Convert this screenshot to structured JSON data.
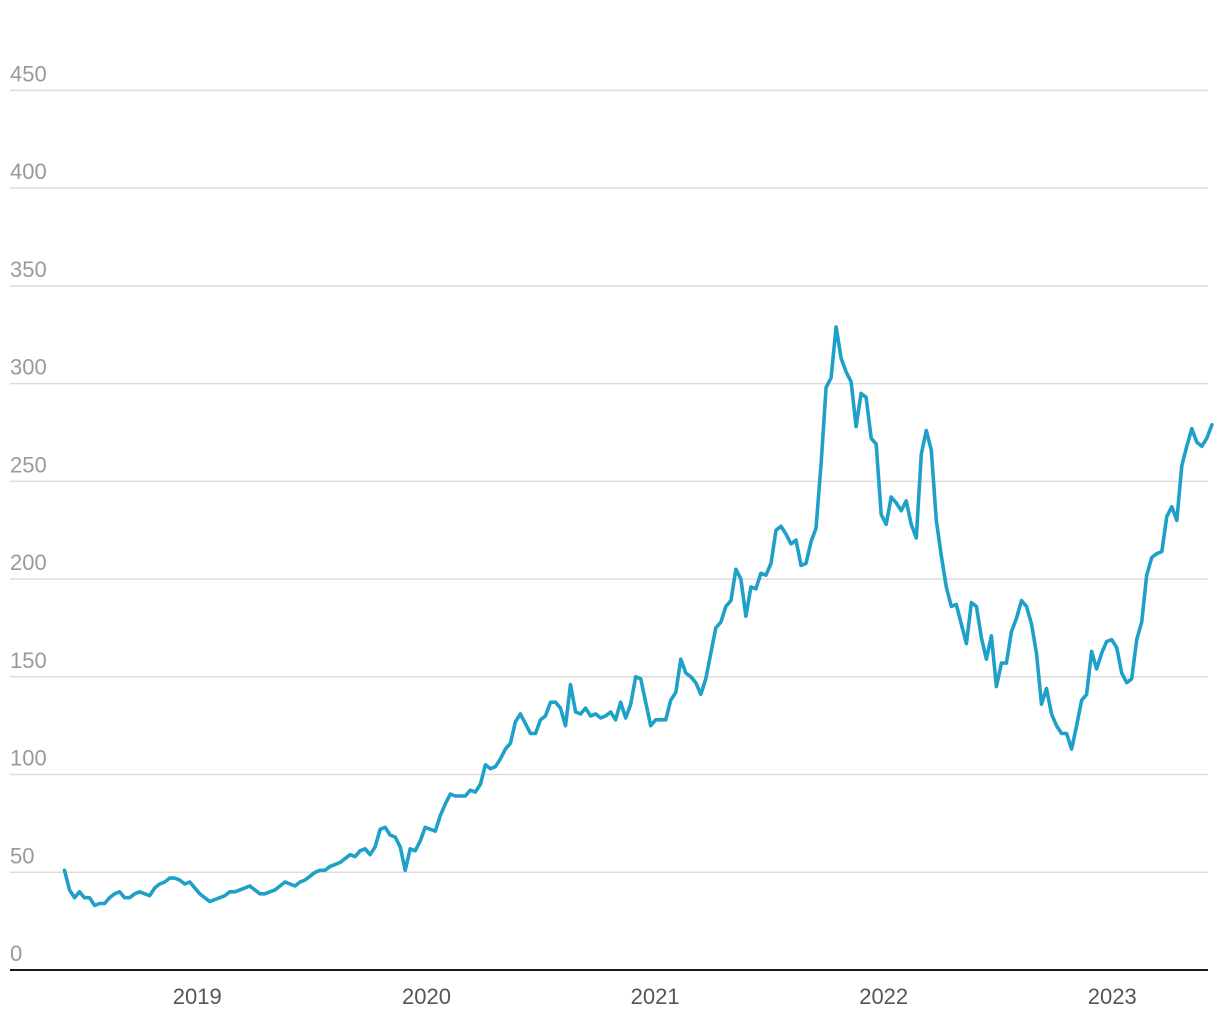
{
  "chart_data": {
    "type": "line",
    "title": "",
    "xlabel": "",
    "ylabel": "",
    "ylim": [
      0,
      485
    ],
    "xlim": [
      "2018-08-20",
      "2023-12-20"
    ],
    "grid": "horizontal",
    "legend": "none",
    "color": "#1fa0c8",
    "yticks": [
      0,
      50,
      100,
      150,
      200,
      250,
      300,
      350,
      400,
      450
    ],
    "xticks": [
      {
        "label": "2019",
        "date": "2019-07-01"
      },
      {
        "label": "2020",
        "date": "2020-07-01"
      },
      {
        "label": "2021",
        "date": "2021-07-01"
      },
      {
        "label": "2022",
        "date": "2022-07-01"
      },
      {
        "label": "2023",
        "date": "2023-07-01"
      }
    ],
    "series": [
      {
        "name": "",
        "points": [
          [
            "2018-12-01",
            51
          ],
          [
            "2018-12-09",
            41
          ],
          [
            "2018-12-17",
            37
          ],
          [
            "2018-12-25",
            40
          ],
          [
            "2019-01-02",
            37
          ],
          [
            "2019-01-10",
            37
          ],
          [
            "2019-01-18",
            33
          ],
          [
            "2019-01-26",
            34
          ],
          [
            "2019-02-03",
            34
          ],
          [
            "2019-02-11",
            37
          ],
          [
            "2019-02-19",
            39
          ],
          [
            "2019-02-27",
            40
          ],
          [
            "2019-03-07",
            37
          ],
          [
            "2019-03-15",
            37
          ],
          [
            "2019-03-23",
            39
          ],
          [
            "2019-03-31",
            40
          ],
          [
            "2019-04-08",
            39
          ],
          [
            "2019-04-16",
            38
          ],
          [
            "2019-04-24",
            42
          ],
          [
            "2019-05-02",
            44
          ],
          [
            "2019-05-10",
            45
          ],
          [
            "2019-05-18",
            47
          ],
          [
            "2019-05-26",
            47
          ],
          [
            "2019-06-03",
            46
          ],
          [
            "2019-06-11",
            44
          ],
          [
            "2019-06-19",
            45
          ],
          [
            "2019-06-27",
            42
          ],
          [
            "2019-07-05",
            39
          ],
          [
            "2019-07-13",
            37
          ],
          [
            "2019-07-21",
            35
          ],
          [
            "2019-07-29",
            36
          ],
          [
            "2019-08-06",
            37
          ],
          [
            "2019-08-14",
            38
          ],
          [
            "2019-08-22",
            40
          ],
          [
            "2019-08-30",
            40
          ],
          [
            "2019-09-07",
            41
          ],
          [
            "2019-09-15",
            42
          ],
          [
            "2019-09-23",
            43
          ],
          [
            "2019-10-01",
            41
          ],
          [
            "2019-10-09",
            39
          ],
          [
            "2019-10-17",
            39
          ],
          [
            "2019-10-25",
            40
          ],
          [
            "2019-11-02",
            41
          ],
          [
            "2019-11-10",
            43
          ],
          [
            "2019-11-18",
            45
          ],
          [
            "2019-11-26",
            44
          ],
          [
            "2019-12-04",
            43
          ],
          [
            "2019-12-12",
            45
          ],
          [
            "2019-12-20",
            46
          ],
          [
            "2019-12-28",
            48
          ],
          [
            "2020-01-05",
            50
          ],
          [
            "2020-01-13",
            51
          ],
          [
            "2020-01-21",
            51
          ],
          [
            "2020-01-29",
            53
          ],
          [
            "2020-02-06",
            54
          ],
          [
            "2020-02-14",
            55
          ],
          [
            "2020-02-22",
            57
          ],
          [
            "2020-03-01",
            59
          ],
          [
            "2020-03-09",
            58
          ],
          [
            "2020-03-17",
            61
          ],
          [
            "2020-03-25",
            62
          ],
          [
            "2020-04-02",
            59
          ],
          [
            "2020-04-10",
            63
          ],
          [
            "2020-04-18",
            72
          ],
          [
            "2020-04-26",
            73
          ],
          [
            "2020-05-04",
            69
          ],
          [
            "2020-05-12",
            68
          ],
          [
            "2020-05-20",
            63
          ],
          [
            "2020-05-28",
            51
          ],
          [
            "2020-06-05",
            62
          ],
          [
            "2020-06-13",
            61
          ],
          [
            "2020-06-21",
            66
          ],
          [
            "2020-06-29",
            73
          ],
          [
            "2020-07-07",
            72
          ],
          [
            "2020-07-15",
            71
          ],
          [
            "2020-07-23",
            79
          ],
          [
            "2020-07-31",
            85
          ],
          [
            "2020-08-08",
            90
          ],
          [
            "2020-08-16",
            89
          ],
          [
            "2020-08-24",
            89
          ],
          [
            "2020-09-01",
            89
          ],
          [
            "2020-09-09",
            92
          ],
          [
            "2020-09-17",
            91
          ],
          [
            "2020-09-25",
            95
          ],
          [
            "2020-10-03",
            105
          ],
          [
            "2020-10-11",
            103
          ],
          [
            "2020-10-19",
            104
          ],
          [
            "2020-10-27",
            108
          ],
          [
            "2020-11-04",
            113
          ],
          [
            "2020-11-12",
            116
          ],
          [
            "2020-11-20",
            127
          ],
          [
            "2020-11-28",
            131
          ],
          [
            "2020-12-06",
            126
          ],
          [
            "2020-12-14",
            121
          ],
          [
            "2020-12-22",
            121
          ],
          [
            "2020-12-30",
            128
          ],
          [
            "2021-01-07",
            130
          ],
          [
            "2021-01-15",
            137
          ],
          [
            "2021-01-23",
            137
          ],
          [
            "2021-01-31",
            134
          ],
          [
            "2021-02-08",
            125
          ],
          [
            "2021-02-16",
            146
          ],
          [
            "2021-02-24",
            132
          ],
          [
            "2021-03-04",
            131
          ],
          [
            "2021-03-12",
            134
          ],
          [
            "2021-03-20",
            130
          ],
          [
            "2021-03-28",
            131
          ],
          [
            "2021-04-05",
            129
          ],
          [
            "2021-04-13",
            130
          ],
          [
            "2021-04-21",
            132
          ],
          [
            "2021-04-29",
            128
          ],
          [
            "2021-05-07",
            137
          ],
          [
            "2021-05-15",
            129
          ],
          [
            "2021-05-23",
            136
          ],
          [
            "2021-05-31",
            150
          ],
          [
            "2021-06-08",
            149
          ],
          [
            "2021-06-16",
            137
          ],
          [
            "2021-06-24",
            125
          ],
          [
            "2021-07-02",
            128
          ],
          [
            "2021-07-10",
            128
          ],
          [
            "2021-07-18",
            128
          ],
          [
            "2021-07-26",
            138
          ],
          [
            "2021-08-03",
            142
          ],
          [
            "2021-08-11",
            159
          ],
          [
            "2021-08-19",
            152
          ],
          [
            "2021-08-27",
            150
          ],
          [
            "2021-09-04",
            147
          ],
          [
            "2021-09-12",
            141
          ],
          [
            "2021-09-20",
            149
          ],
          [
            "2021-09-28",
            162
          ],
          [
            "2021-10-06",
            175
          ],
          [
            "2021-10-14",
            178
          ],
          [
            "2021-10-22",
            186
          ],
          [
            "2021-10-30",
            189
          ],
          [
            "2021-11-07",
            205
          ],
          [
            "2021-11-15",
            200
          ],
          [
            "2021-11-23",
            181
          ],
          [
            "2021-12-01",
            196
          ],
          [
            "2021-12-09",
            195
          ],
          [
            "2021-12-17",
            203
          ],
          [
            "2021-12-25",
            202
          ],
          [
            "2022-01-02",
            208
          ],
          [
            "2022-01-10",
            225
          ],
          [
            "2022-01-18",
            227
          ],
          [
            "2022-01-26",
            223
          ],
          [
            "2022-02-03",
            218
          ],
          [
            "2022-02-11",
            220
          ],
          [
            "2022-02-19",
            207
          ],
          [
            "2022-02-27",
            208
          ],
          [
            "2022-03-07",
            219
          ],
          [
            "2022-03-15",
            226
          ],
          [
            "2022-03-23",
            259
          ],
          [
            "2022-03-31",
            298
          ],
          [
            "2022-04-08",
            303
          ],
          [
            "2022-04-16",
            329
          ],
          [
            "2022-04-24",
            313
          ],
          [
            "2022-05-02",
            306
          ],
          [
            "2022-05-10",
            301
          ],
          [
            "2022-05-18",
            278
          ],
          [
            "2022-05-26",
            295
          ],
          [
            "2022-06-03",
            293
          ],
          [
            "2022-06-11",
            272
          ],
          [
            "2022-06-19",
            269
          ],
          [
            "2022-06-27",
            233
          ],
          [
            "2022-07-05",
            228
          ],
          [
            "2022-07-13",
            242
          ],
          [
            "2022-07-21",
            239
          ],
          [
            "2022-07-29",
            235
          ],
          [
            "2022-08-06",
            240
          ],
          [
            "2022-08-14",
            228
          ],
          [
            "2022-08-22",
            221
          ],
          [
            "2022-08-30",
            264
          ],
          [
            "2022-09-07",
            276
          ],
          [
            "2022-09-15",
            266
          ],
          [
            "2022-09-23",
            230
          ],
          [
            "2022-10-01",
            212
          ],
          [
            "2022-10-09",
            196
          ],
          [
            "2022-10-17",
            186
          ],
          [
            "2022-10-25",
            187
          ],
          [
            "2022-11-02",
            177
          ],
          [
            "2022-11-10",
            167
          ],
          [
            "2022-11-18",
            188
          ],
          [
            "2022-11-26",
            186
          ],
          [
            "2022-12-04",
            170
          ],
          [
            "2022-12-12",
            159
          ],
          [
            "2022-12-20",
            171
          ],
          [
            "2022-12-28",
            145
          ],
          [
            "2023-01-05",
            157
          ],
          [
            "2023-01-13",
            157
          ],
          [
            "2023-01-21",
            173
          ],
          [
            "2023-01-29",
            180
          ],
          [
            "2023-02-06",
            189
          ],
          [
            "2023-02-14",
            186
          ],
          [
            "2023-02-22",
            177
          ],
          [
            "2023-03-02",
            162
          ],
          [
            "2023-03-10",
            136
          ],
          [
            "2023-03-18",
            144
          ],
          [
            "2023-03-26",
            131
          ],
          [
            "2023-04-03",
            125
          ],
          [
            "2023-04-11",
            121
          ],
          [
            "2023-04-19",
            121
          ],
          [
            "2023-04-27",
            113
          ],
          [
            "2023-05-05",
            125
          ],
          [
            "2023-05-13",
            138
          ],
          [
            "2023-05-21",
            141
          ],
          [
            "2023-05-29",
            163
          ],
          [
            "2023-06-06",
            154
          ],
          [
            "2023-06-14",
            162
          ],
          [
            "2023-06-22",
            168
          ],
          [
            "2023-06-30",
            169
          ],
          [
            "2023-07-08",
            165
          ],
          [
            "2023-07-16",
            152
          ],
          [
            "2023-07-24",
            147
          ],
          [
            "2023-08-01",
            149
          ],
          [
            "2023-08-09",
            169
          ],
          [
            "2023-08-17",
            178
          ],
          [
            "2023-08-25",
            202
          ],
          [
            "2023-09-02",
            211
          ],
          [
            "2023-09-10",
            213
          ],
          [
            "2023-09-18",
            214
          ],
          [
            "2023-09-26",
            232
          ],
          [
            "2023-10-04",
            237
          ],
          [
            "2023-10-12",
            230
          ],
          [
            "2023-10-20",
            258
          ],
          [
            "2023-10-28",
            268
          ],
          [
            "2023-11-05",
            277
          ],
          [
            "2023-11-13",
            270
          ],
          [
            "2023-11-21",
            268
          ],
          [
            "2023-11-29",
            272
          ],
          [
            "2023-12-07",
            279
          ]
        ]
      }
    ]
  }
}
